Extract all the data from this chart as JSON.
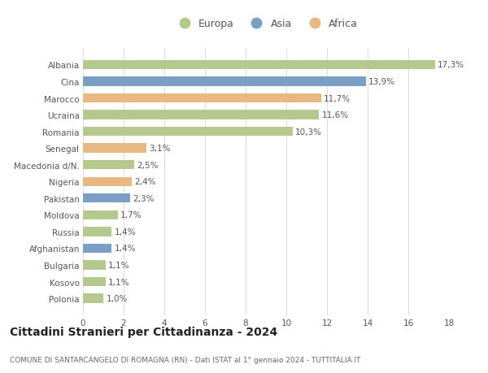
{
  "countries": [
    "Albania",
    "Cina",
    "Marocco",
    "Ucraina",
    "Romania",
    "Senegal",
    "Macedonia d/N.",
    "Nigeria",
    "Pakistan",
    "Moldova",
    "Russia",
    "Afghanistan",
    "Bulgaria",
    "Kosovo",
    "Polonia"
  ],
  "values": [
    17.3,
    13.9,
    11.7,
    11.6,
    10.3,
    3.1,
    2.5,
    2.4,
    2.3,
    1.7,
    1.4,
    1.4,
    1.1,
    1.1,
    1.0
  ],
  "labels": [
    "17,3%",
    "13,9%",
    "11,7%",
    "11,6%",
    "10,3%",
    "3,1%",
    "2,5%",
    "2,4%",
    "2,3%",
    "1,7%",
    "1,4%",
    "1,4%",
    "1,1%",
    "1,1%",
    "1,0%"
  ],
  "continents": [
    "Europa",
    "Asia",
    "Africa",
    "Europa",
    "Europa",
    "Africa",
    "Europa",
    "Africa",
    "Asia",
    "Europa",
    "Europa",
    "Asia",
    "Europa",
    "Europa",
    "Europa"
  ],
  "colors": {
    "Europa": "#b5c98e",
    "Asia": "#7b9fc4",
    "Africa": "#e8b882"
  },
  "background_color": "#ffffff",
  "grid_color": "#dddddd",
  "title": "Cittadini Stranieri per Cittadinanza - 2024",
  "subtitle": "COMUNE DI SANTARCANGELO DI ROMAGNA (RN) - Dati ISTAT al 1° gennaio 2024 - TUTTITALIA.IT",
  "xlim": [
    0,
    18
  ],
  "xticks": [
    0,
    2,
    4,
    6,
    8,
    10,
    12,
    14,
    16,
    18
  ],
  "bar_height": 0.55,
  "label_fontsize": 7.5,
  "ytick_fontsize": 7.5,
  "xtick_fontsize": 7.5,
  "title_fontsize": 10,
  "subtitle_fontsize": 6.5,
  "legend_fontsize": 9
}
